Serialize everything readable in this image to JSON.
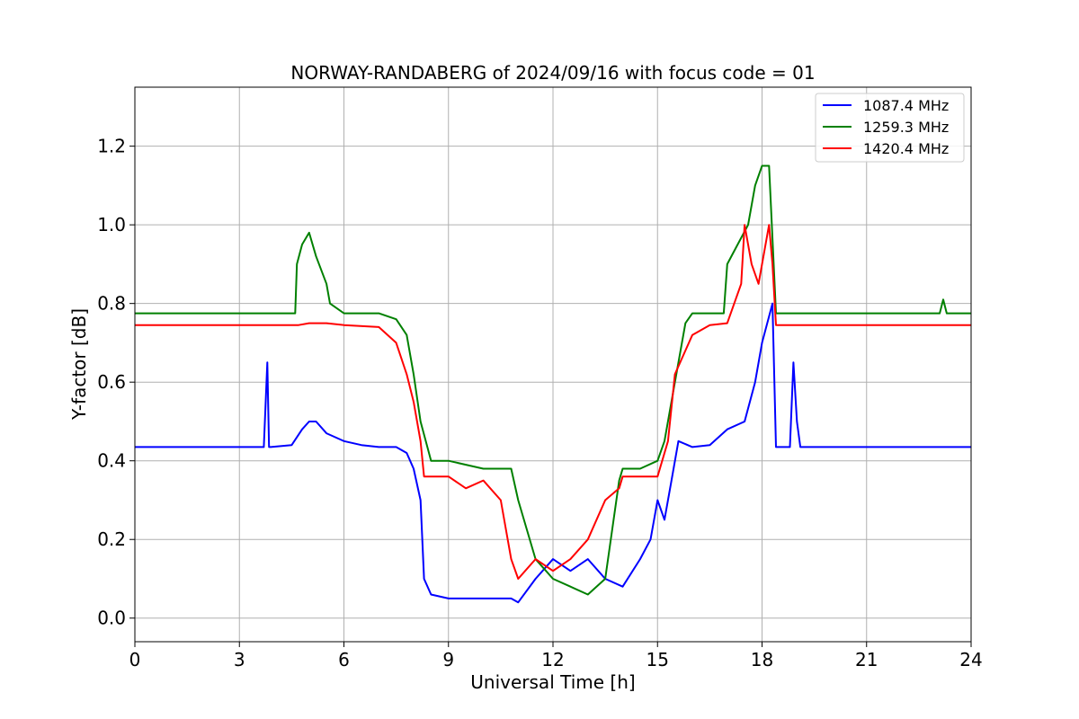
{
  "chart_data": {
    "type": "line",
    "title": "NORWAY-RANDABERG of 2024/09/16 with focus code = 01",
    "xlabel": "Universal Time [h]",
    "ylabel": "Y-factor [dB]",
    "xlim": [
      0,
      24
    ],
    "ylim": [
      -0.06,
      1.35
    ],
    "xticks": [
      "0",
      "3",
      "6",
      "9",
      "12",
      "15",
      "18",
      "21",
      "24"
    ],
    "yticks": [
      "0.0",
      "0.2",
      "0.4",
      "0.6",
      "0.8",
      "1.0",
      "1.2"
    ],
    "grid": true,
    "legend_position": "top-right",
    "series": [
      {
        "name": "1087.4 MHz",
        "color": "#0000ff",
        "x": [
          0,
          3.7,
          3.8,
          3.85,
          3.9,
          4.5,
          4.8,
          5.0,
          5.2,
          5.5,
          6.0,
          6.5,
          7.0,
          7.5,
          7.8,
          8.0,
          8.2,
          8.3,
          8.5,
          9.0,
          10.0,
          10.8,
          11.0,
          11.5,
          12.0,
          12.5,
          13.0,
          13.5,
          14.0,
          14.5,
          14.8,
          15.0,
          15.2,
          15.4,
          15.6,
          16.0,
          16.5,
          17.0,
          17.5,
          17.8,
          18.0,
          18.3,
          18.4,
          18.5,
          18.8,
          18.9,
          19.0,
          19.1,
          19.5,
          24
        ],
        "y": [
          0.435,
          0.435,
          0.65,
          0.435,
          0.435,
          0.44,
          0.48,
          0.5,
          0.5,
          0.47,
          0.45,
          0.44,
          0.435,
          0.435,
          0.42,
          0.38,
          0.3,
          0.1,
          0.06,
          0.05,
          0.05,
          0.05,
          0.04,
          0.1,
          0.15,
          0.12,
          0.15,
          0.1,
          0.08,
          0.15,
          0.2,
          0.3,
          0.25,
          0.35,
          0.45,
          0.435,
          0.44,
          0.48,
          0.5,
          0.6,
          0.7,
          0.8,
          0.435,
          0.435,
          0.435,
          0.65,
          0.5,
          0.435,
          0.435,
          0.435
        ]
      },
      {
        "name": "1259.3 MHz",
        "color": "#008000",
        "x": [
          0,
          4.6,
          4.65,
          4.8,
          5.0,
          5.2,
          5.5,
          5.6,
          6.0,
          7.0,
          7.5,
          7.8,
          8.0,
          8.2,
          8.5,
          9.0,
          10.0,
          10.8,
          11.0,
          11.5,
          12.0,
          12.5,
          13.0,
          13.5,
          13.9,
          14.0,
          14.5,
          15.0,
          15.2,
          15.5,
          15.8,
          16.0,
          16.5,
          16.9,
          17.0,
          17.3,
          17.6,
          17.8,
          18.0,
          18.2,
          18.4,
          18.5,
          20.0,
          23.1,
          23.2,
          23.3,
          24
        ],
        "y": [
          0.775,
          0.775,
          0.9,
          0.95,
          0.98,
          0.92,
          0.85,
          0.8,
          0.775,
          0.775,
          0.76,
          0.72,
          0.62,
          0.5,
          0.4,
          0.4,
          0.38,
          0.38,
          0.3,
          0.15,
          0.1,
          0.08,
          0.06,
          0.1,
          0.35,
          0.38,
          0.38,
          0.4,
          0.45,
          0.6,
          0.75,
          0.775,
          0.775,
          0.775,
          0.9,
          0.95,
          1.0,
          1.1,
          1.15,
          1.15,
          0.775,
          0.775,
          0.775,
          0.775,
          0.81,
          0.775,
          0.775
        ]
      },
      {
        "name": "1420.4 MHz",
        "color": "#ff0000",
        "x": [
          0,
          4.7,
          5.0,
          5.5,
          6.0,
          7.0,
          7.5,
          7.8,
          8.0,
          8.2,
          8.3,
          8.5,
          9.0,
          9.5,
          10.0,
          10.5,
          10.8,
          11.0,
          11.5,
          12.0,
          12.5,
          13.0,
          13.5,
          13.9,
          14.0,
          14.5,
          15.0,
          15.3,
          15.5,
          16.0,
          16.5,
          17.0,
          17.4,
          17.5,
          17.7,
          17.9,
          18.2,
          18.3,
          18.4,
          18.5,
          24
        ],
        "y": [
          0.745,
          0.745,
          0.75,
          0.75,
          0.745,
          0.74,
          0.7,
          0.62,
          0.55,
          0.45,
          0.36,
          0.36,
          0.36,
          0.33,
          0.35,
          0.3,
          0.15,
          0.1,
          0.15,
          0.12,
          0.15,
          0.2,
          0.3,
          0.33,
          0.36,
          0.36,
          0.36,
          0.45,
          0.62,
          0.72,
          0.745,
          0.75,
          0.85,
          1.0,
          0.9,
          0.85,
          1.0,
          0.9,
          0.745,
          0.745,
          0.745
        ]
      }
    ]
  }
}
